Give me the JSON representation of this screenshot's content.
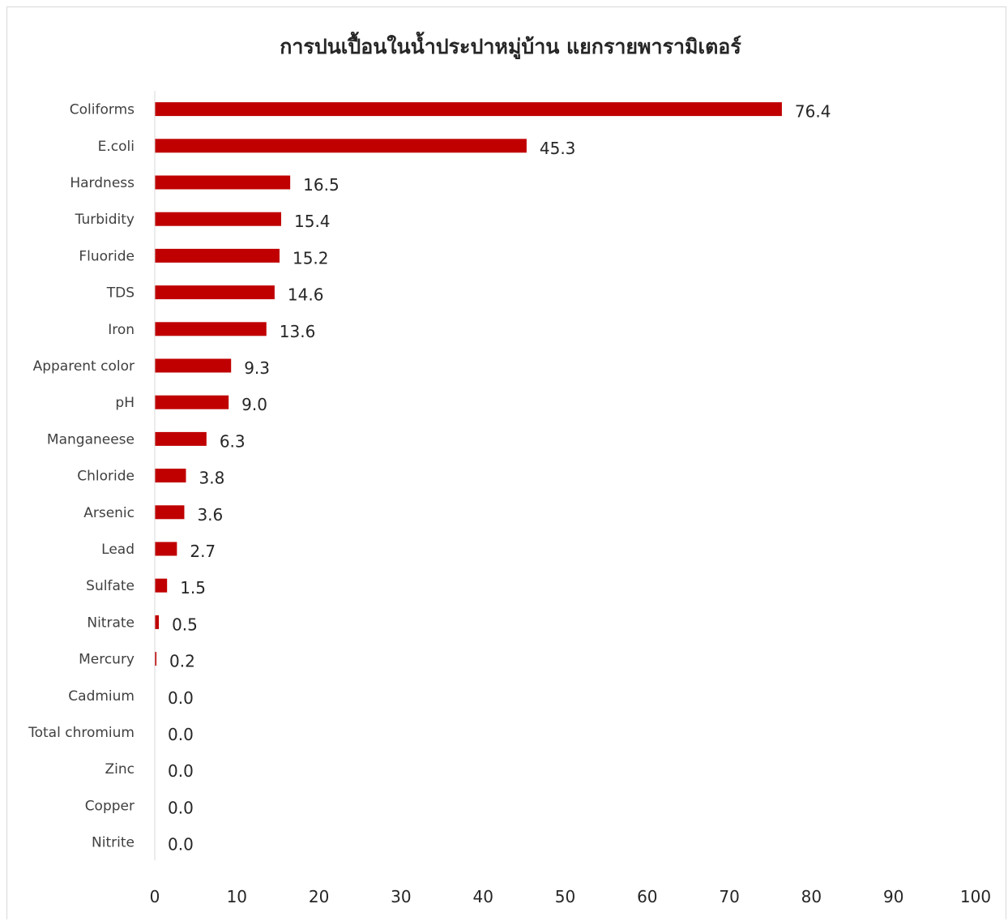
{
  "chart_data": {
    "type": "bar",
    "orientation": "horizontal",
    "title": "การปนเปื้อนในน้ำประปาหมู่บ้าน แยกรายพารามิเตอร์",
    "categories": [
      "Coliforms",
      "E.coli",
      "Hardness",
      "Turbidity",
      "Fluoride",
      "TDS",
      "Iron",
      "Apparent color",
      "pH",
      "Manganeese",
      "Chloride",
      "Arsenic",
      "Lead",
      "Sulfate",
      "Nitrate",
      "Mercury",
      "Cadmium",
      "Total chromium",
      "Zinc",
      "Copper",
      "Nitrite"
    ],
    "values": [
      76.4,
      45.3,
      16.5,
      15.4,
      15.2,
      14.6,
      13.6,
      9.3,
      9.0,
      6.3,
      3.8,
      3.6,
      2.7,
      1.5,
      0.5,
      0.2,
      0.0,
      0.0,
      0.0,
      0.0,
      0.0
    ],
    "value_labels": [
      "76.4",
      "45.3",
      "16.5",
      "15.4",
      "15.2",
      "14.6",
      "13.6",
      "9.3",
      "9.0",
      "6.3",
      "3.8",
      "3.6",
      "2.7",
      "1.5",
      "0.5",
      "0.2",
      "0.0",
      "0.0",
      "0.0",
      "0.0",
      "0.0"
    ],
    "xlim": [
      0,
      100
    ],
    "x_ticks": [
      "0",
      "10",
      "20",
      "30",
      "40",
      "50",
      "60",
      "70",
      "80",
      "90",
      "100"
    ],
    "bar_color": "#c00000",
    "grid": false,
    "legend": "none"
  }
}
